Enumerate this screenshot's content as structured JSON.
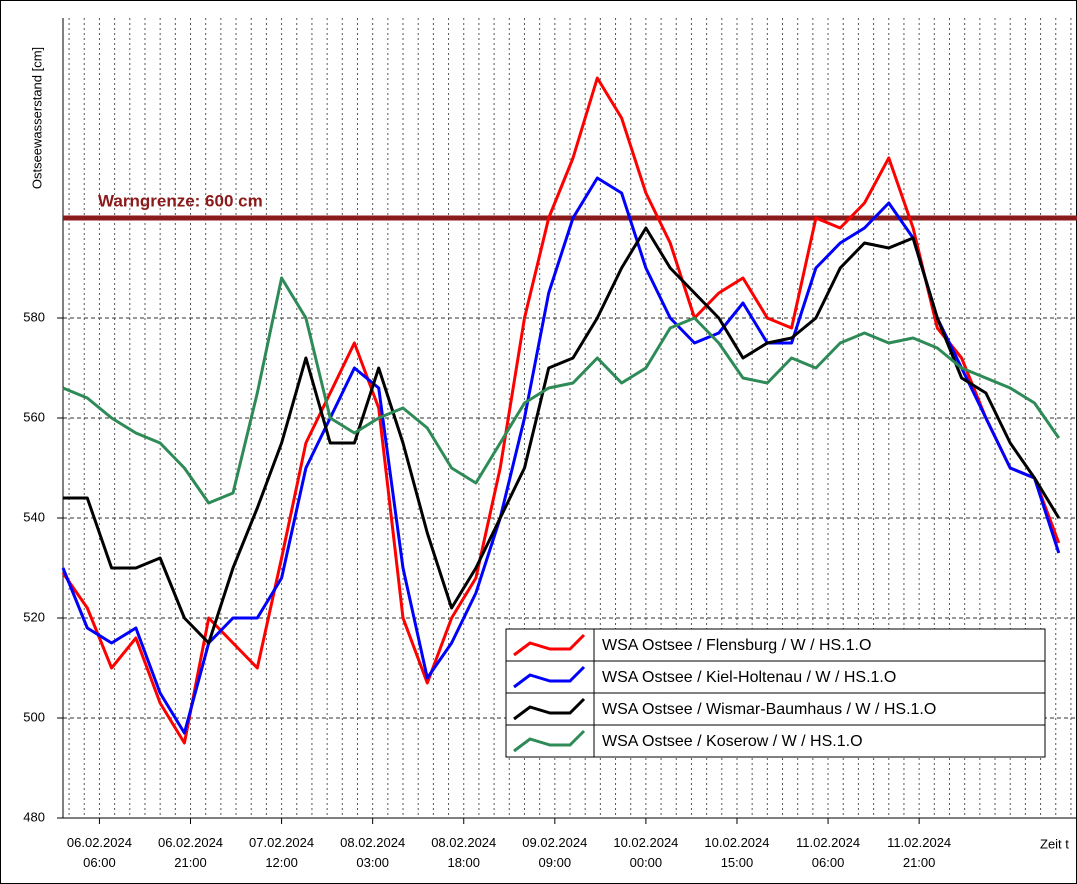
{
  "chart_data": {
    "type": "line",
    "ylabel": "Ostseewasserstand [cm]",
    "xlabel": "Zeit t",
    "threshold": {
      "value": 600,
      "label": "Warngrenze: 600 cm",
      "color": "#8b1a1a"
    },
    "x": [
      "06.02.2024 00:00",
      "06.02.2024 04:00",
      "06.02.2024 08:00",
      "06.02.2024 12:00",
      "06.02.2024 16:00",
      "06.02.2024 20:00",
      "07.02.2024 00:00",
      "07.02.2024 04:00",
      "07.02.2024 08:00",
      "07.02.2024 12:00",
      "07.02.2024 16:00",
      "07.02.2024 20:00",
      "08.02.2024 00:00",
      "08.02.2024 04:00",
      "08.02.2024 08:00",
      "08.02.2024 12:00",
      "08.02.2024 16:00",
      "08.02.2024 20:00",
      "09.02.2024 00:00",
      "09.02.2024 04:00",
      "09.02.2024 08:00",
      "09.02.2024 12:00",
      "09.02.2024 16:00",
      "09.02.2024 20:00",
      "10.02.2024 00:00",
      "10.02.2024 04:00",
      "10.02.2024 08:00",
      "10.02.2024 12:00",
      "10.02.2024 16:00",
      "10.02.2024 20:00",
      "11.02.2024 00:00",
      "11.02.2024 04:00",
      "11.02.2024 08:00",
      "11.02.2024 12:00",
      "11.02.2024 16:00",
      "11.02.2024 20:00",
      "12.02.2024 00:00",
      "12.02.2024 04:00",
      "12.02.2024 08:00",
      "12.02.2024 12:00",
      "12.02.2024 16:00",
      "12.02.2024 20:00"
    ],
    "series": [
      {
        "name": "WSA Ostsee / Flensburg / W / HS.1.O",
        "color": "#ff0000",
        "values": [
          529,
          522,
          510,
          516,
          503,
          495,
          520,
          515,
          510,
          532,
          555,
          565,
          575,
          562,
          520,
          507,
          520,
          528,
          550,
          580,
          600,
          612,
          628,
          620,
          605,
          595,
          580,
          585,
          588,
          580,
          578,
          600,
          598,
          603,
          612,
          598,
          578,
          572,
          560,
          550,
          548,
          535
        ]
      },
      {
        "name": "WSA Ostsee / Kiel-Holtenau / W / HS.1.O",
        "color": "#0000ff",
        "values": [
          530,
          518,
          515,
          518,
          505,
          497,
          515,
          520,
          520,
          528,
          550,
          560,
          570,
          566,
          530,
          508,
          515,
          525,
          540,
          560,
          585,
          600,
          608,
          605,
          590,
          580,
          575,
          577,
          583,
          575,
          575,
          590,
          595,
          598,
          603,
          596,
          580,
          570,
          560,
          550,
          548,
          533
        ]
      },
      {
        "name": "WSA Ostsee / Wismar-Baumhaus / W / HS.1.O",
        "color": "#000000",
        "values": [
          544,
          544,
          530,
          530,
          532,
          520,
          515,
          530,
          542,
          555,
          572,
          555,
          555,
          570,
          555,
          537,
          522,
          530,
          540,
          550,
          570,
          572,
          580,
          590,
          598,
          590,
          585,
          580,
          572,
          575,
          576,
          580,
          590,
          595,
          594,
          596,
          580,
          568,
          565,
          555,
          548,
          540
        ]
      },
      {
        "name": "WSA Ostsee / Koserow / W / HS.1.O",
        "color": "#2e8b57",
        "values": [
          566,
          564,
          560,
          557,
          555,
          550,
          543,
          545,
          565,
          588,
          580,
          560,
          557,
          560,
          562,
          558,
          550,
          547,
          555,
          563,
          566,
          567,
          572,
          567,
          570,
          578,
          580,
          575,
          568,
          567,
          572,
          570,
          575,
          577,
          575,
          576,
          574,
          570,
          568,
          566,
          563,
          556
        ]
      }
    ],
    "xlim": [
      "06.02.2024 00:00",
      "12.02.2024 23:00"
    ],
    "xticks": [
      "06.02.2024 06:00",
      "06.02.2024 21:00",
      "07.02.2024 12:00",
      "08.02.2024 03:00",
      "08.02.2024 18:00",
      "09.02.2024 09:00",
      "10.02.2024 00:00",
      "10.02.2024 15:00",
      "11.02.2024 06:00",
      "11.02.2024 21:00"
    ],
    "ylim": [
      480,
      640
    ],
    "yticks": [
      480,
      500,
      520,
      540,
      560,
      580
    ],
    "grid": true,
    "legend": "lower right"
  }
}
